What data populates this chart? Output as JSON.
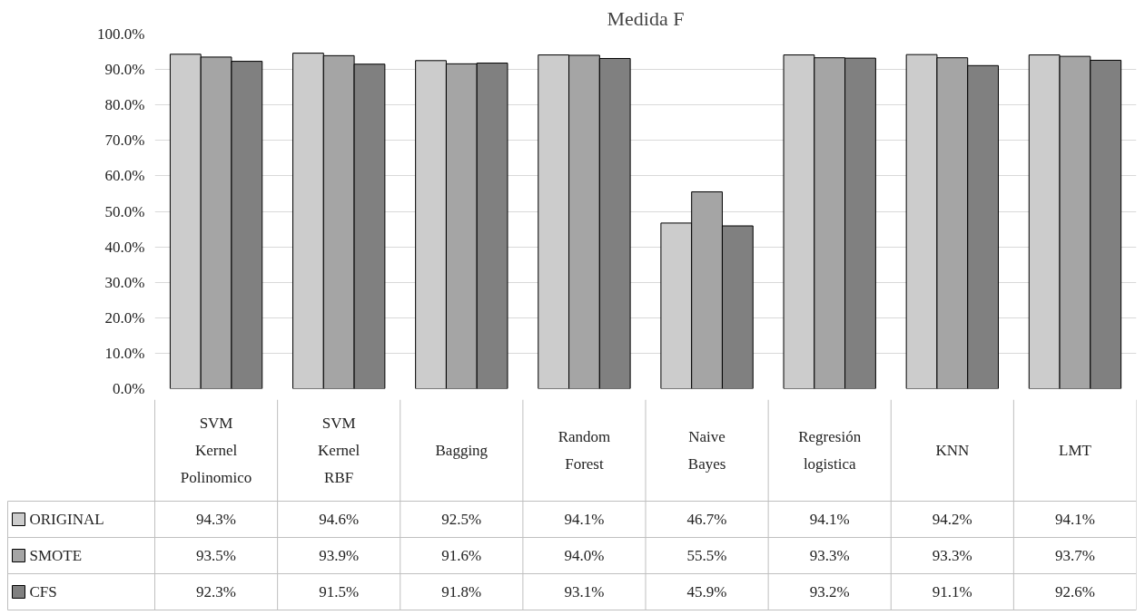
{
  "chart_data": {
    "type": "bar",
    "title": "Medida F",
    "categories": [
      "SVM Kernel Polinomico",
      "SVM Kernel RBF",
      "Bagging",
      "Random Forest",
      "Naive Bayes",
      "Regresión logistica",
      "KNN",
      "LMT"
    ],
    "series": [
      {
        "name": "ORIGINAL",
        "color": "#cccccc",
        "values": [
          94.3,
          94.6,
          92.5,
          94.1,
          46.7,
          94.1,
          94.2,
          94.1
        ],
        "value_labels": [
          "94.3%",
          "94.6%",
          "92.5%",
          "94.1%",
          "46.7%",
          "94.1%",
          "94.2%",
          "94.1%"
        ]
      },
      {
        "name": "SMOTE",
        "color": "#a5a5a5",
        "values": [
          93.5,
          93.9,
          91.6,
          94.0,
          55.5,
          93.3,
          93.3,
          93.7
        ],
        "value_labels": [
          "93.5%",
          "93.9%",
          "91.6%",
          "94.0%",
          "55.5%",
          "93.3%",
          "93.3%",
          "93.7%"
        ]
      },
      {
        "name": "CFS",
        "color": "#808080",
        "values": [
          92.3,
          91.5,
          91.8,
          93.1,
          45.9,
          93.2,
          91.1,
          92.6
        ],
        "value_labels": [
          "92.3%",
          "91.5%",
          "91.8%",
          "93.1%",
          "45.9%",
          "93.2%",
          "91.1%",
          "92.6%"
        ]
      }
    ],
    "ylim": [
      0,
      100
    ],
    "yticks": [
      {
        "value": 0,
        "label": "0.0%"
      },
      {
        "value": 10,
        "label": "10.0%"
      },
      {
        "value": 20,
        "label": "20.0%"
      },
      {
        "value": 30,
        "label": "30.0%"
      },
      {
        "value": 40,
        "label": "40.0%"
      },
      {
        "value": 50,
        "label": "50.0%"
      },
      {
        "value": 60,
        "label": "60.0%"
      },
      {
        "value": 70,
        "label": "70.0%"
      },
      {
        "value": 80,
        "label": "80.0%"
      },
      {
        "value": 90,
        "label": "90.0%"
      },
      {
        "value": 100,
        "label": "100.0%"
      }
    ],
    "grid": "y",
    "legend": "bottom left"
  }
}
